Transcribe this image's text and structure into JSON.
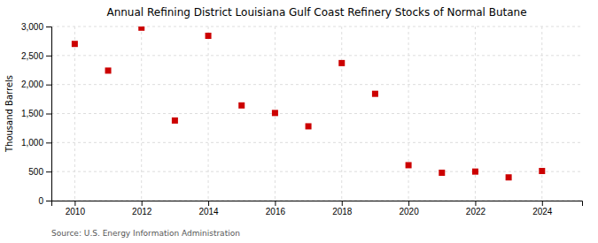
{
  "chart_data": {
    "type": "scatter",
    "title": "Annual Refining District Louisiana Gulf Coast Refinery Stocks of Normal Butane",
    "y_label": "Thousand Barrels",
    "annotations": [
      "Source: U.S. Energy Information Administration"
    ],
    "x": [
      2010,
      2011,
      2012,
      2013,
      2014,
      2015,
      2016,
      2017,
      2018,
      2019,
      2020,
      2021,
      2022,
      2023,
      2024
    ],
    "values": [
      2700,
      2240,
      2980,
      1380,
      2840,
      1640,
      1510,
      1280,
      2370,
      1840,
      610,
      480,
      500,
      400,
      510
    ],
    "color": "#cc0000",
    "marker": "square",
    "xlim": [
      2009.3,
      2025.2
    ],
    "xticks": [
      2010,
      2012,
      2014,
      2016,
      2018,
      2020,
      2022,
      2024
    ],
    "ylim": [
      0,
      3000
    ],
    "yticks": [
      0,
      500,
      {
        "value": 1000,
        "label": "1,000"
      },
      {
        "value": 1500,
        "label": "1,500"
      },
      {
        "value": 2000,
        "label": "2,000"
      },
      {
        "value": 2500,
        "label": "2,500"
      },
      {
        "value": 3000,
        "label": "3,000"
      }
    ],
    "grid": true
  }
}
